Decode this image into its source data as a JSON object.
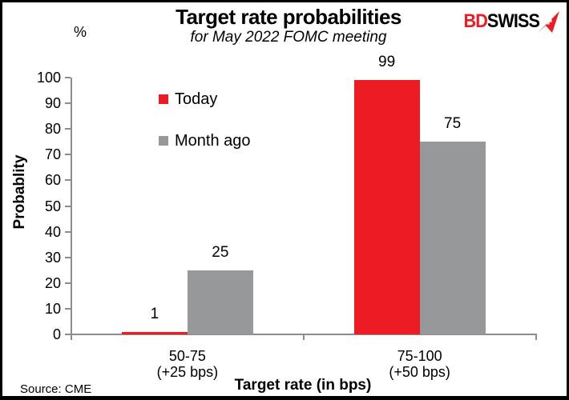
{
  "header": {
    "title": "Target rate probabilities",
    "subtitle": "for May 2022 FOMC meeting",
    "logo": {
      "bd": "BD",
      "swiss": "SWISS",
      "arrow_color": "#ED1C24"
    }
  },
  "chart_data": {
    "type": "bar",
    "categories": [
      {
        "line1": "50-75",
        "line2": "(+25 bps)"
      },
      {
        "line1": "75-100",
        "line2": "(+50 bps)"
      }
    ],
    "series": [
      {
        "name": "Today",
        "color": "#ED1C24",
        "values": [
          1,
          99
        ]
      },
      {
        "name": "Month ago",
        "color": "#97989A",
        "values": [
          25,
          75
        ]
      }
    ],
    "unit_label": "%",
    "ylabel": "Probablity",
    "xlabel": "Target rate (in bps)",
    "ylim": [
      0,
      100
    ],
    "yticks": [
      0,
      10,
      20,
      30,
      40,
      50,
      60,
      70,
      80,
      90,
      100
    ],
    "grid": false,
    "legend_position": "upper-left-inside",
    "axis_color": "#8C8C8C"
  },
  "footer": {
    "source": "Source: CME"
  }
}
